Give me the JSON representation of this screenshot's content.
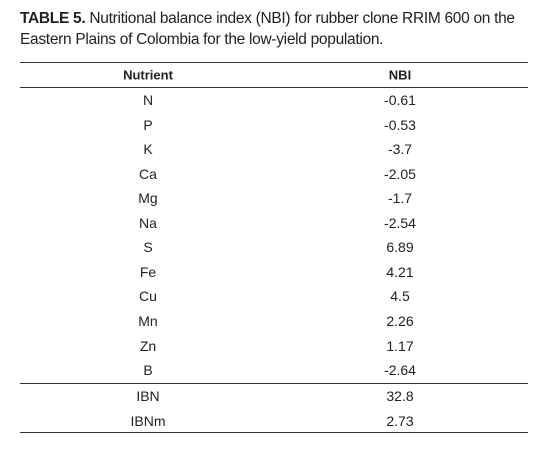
{
  "caption": {
    "label": "TABLE 5.",
    "text": "Nutritional balance index (NBI) for rubber clone RRIM 600 on the Eastern Plains of Colombia for the low-yield population."
  },
  "table": {
    "header": [
      "Nutrient",
      "NBI"
    ],
    "rows": [
      [
        "N",
        -0.61
      ],
      [
        "P",
        -0.53
      ],
      [
        "K",
        -3.7
      ],
      [
        "Ca",
        -2.05
      ],
      [
        "Mg",
        -1.7
      ],
      [
        "Na",
        -2.54
      ],
      [
        "S",
        6.89
      ],
      [
        "Fe",
        4.21
      ],
      [
        "Cu",
        4.5
      ],
      [
        "Mn",
        2.26
      ],
      [
        "Zn",
        1.17
      ],
      [
        "B",
        -2.64
      ]
    ],
    "summary_rows": [
      [
        "IBN",
        32.8
      ],
      [
        "IBNm",
        2.73
      ]
    ]
  }
}
